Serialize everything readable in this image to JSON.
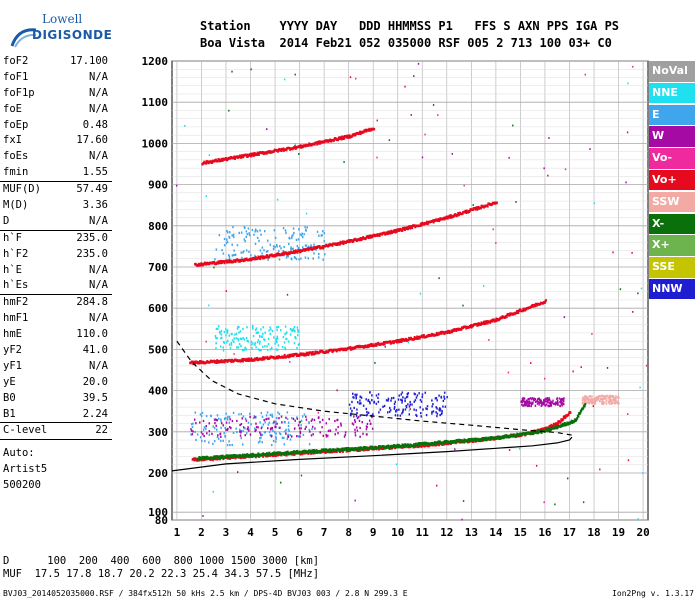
{
  "logo": {
    "line1": "Lowell",
    "line2": "DIGISONDE"
  },
  "header": {
    "line1": "Station    YYYY DAY   DDD HHMMSS P1   FFS S AXN PPS IGA PS",
    "line2": "Boa Vista  2014 Feb21 052 035000 RSF 005 2 713 100 03+ C0"
  },
  "params": [
    {
      "k": "foF2",
      "v": "17.100"
    },
    {
      "k": "foF1",
      "v": "N/A"
    },
    {
      "k": "foF1p",
      "v": "N/A"
    },
    {
      "k": "foE",
      "v": "N/A"
    },
    {
      "k": "foEp",
      "v": "0.48"
    },
    {
      "k": "fxI",
      "v": "17.60"
    },
    {
      "k": "foEs",
      "v": "N/A"
    },
    {
      "k": "fmin",
      "v": "1.55"
    },
    {
      "k": "MUF(D)",
      "v": "57.49"
    },
    {
      "k": "M(D)",
      "v": "3.36"
    },
    {
      "k": "D",
      "v": "N/A"
    },
    {
      "k": "h`F",
      "v": "235.0"
    },
    {
      "k": "h`F2",
      "v": "235.0"
    },
    {
      "k": "h`E",
      "v": "N/A"
    },
    {
      "k": "h`Es",
      "v": "N/A"
    },
    {
      "k": "hmF2",
      "v": "284.8"
    },
    {
      "k": "hmF1",
      "v": "N/A"
    },
    {
      "k": "hmE",
      "v": "110.0"
    },
    {
      "k": "yF2",
      "v": "41.0"
    },
    {
      "k": "yF1",
      "v": "N/A"
    },
    {
      "k": "yE",
      "v": "20.0"
    },
    {
      "k": "B0",
      "v": "39.5"
    },
    {
      "k": "B1",
      "v": "2.24"
    },
    {
      "k": "C-level",
      "v": "22"
    }
  ],
  "auto": {
    "line1": "Auto:",
    "line2": "Artist5",
    "line3": "500200"
  },
  "legend": [
    {
      "label": "NoVal",
      "color": "#a0a0a0"
    },
    {
      "label": "NNE",
      "color": "#1ee0ee"
    },
    {
      "label": "E",
      "color": "#3fa5ec"
    },
    {
      "label": "W",
      "color": "#a50aa5"
    },
    {
      "label": "Vo-",
      "color": "#ee2a9e"
    },
    {
      "label": "Vo+",
      "color": "#e60a1e"
    },
    {
      "label": "SSW",
      "color": "#f4aaa4"
    },
    {
      "label": "X-",
      "color": "#0a700a"
    },
    {
      "label": "X+",
      "color": "#6eb44e"
    },
    {
      "label": "SSE",
      "color": "#c4c400"
    },
    {
      "label": "NNW",
      "color": "#1e1ed0"
    }
  ],
  "muf_table": {
    "line1": "D      100  200  400  600  800 1000 1500 3000 [km]",
    "line2": "MUF  17.5 17.8 18.7 20.2 22.3 25.4 34.3 57.5 [MHz]"
  },
  "footer": "BVJ03_2014052035000.RSF / 384fx512h 50 kHs 2.5 km / DPS-4D BVJ03 003 / 2.8 N 299.3 E",
  "version": "Ion2Png v. 1.3.17",
  "chart_data": {
    "type": "scatter",
    "xlim": [
      0.8,
      20.2
    ],
    "ylim": [
      80,
      1200
    ],
    "x_ticks": [
      1,
      2,
      3,
      4,
      5,
      6,
      7,
      8,
      9,
      10,
      11,
      12,
      13,
      14,
      15,
      16,
      17,
      18,
      19,
      20
    ],
    "y_ticks": [
      80,
      100,
      200,
      300,
      400,
      500,
      600,
      700,
      800,
      900,
      1000,
      1100,
      1200
    ],
    "grid": true,
    "ionogram_traces": [
      {
        "trace": "O-trace 1st hop",
        "color": "#e60a1e",
        "points": [
          [
            1.6,
            235
          ],
          [
            3,
            240
          ],
          [
            5,
            247
          ],
          [
            7,
            255
          ],
          [
            9,
            262
          ],
          [
            11,
            270
          ],
          [
            13,
            281
          ],
          [
            15,
            295
          ],
          [
            16,
            310
          ],
          [
            16.5,
            325
          ],
          [
            17.0,
            350
          ]
        ]
      },
      {
        "trace": "X-trace 1st hop",
        "color": "#0a700a",
        "points": [
          [
            1.8,
            238
          ],
          [
            5,
            250
          ],
          [
            10,
            268
          ],
          [
            14,
            288
          ],
          [
            16,
            305
          ],
          [
            17.2,
            330
          ],
          [
            17.6,
            370
          ]
        ]
      },
      {
        "trace": "2nd hop",
        "color": "#e60a1e",
        "points": [
          [
            1.5,
            470
          ],
          [
            4,
            478
          ],
          [
            6,
            490
          ],
          [
            8,
            505
          ],
          [
            10,
            523
          ],
          [
            12,
            545
          ],
          [
            14,
            575
          ],
          [
            16,
            620
          ]
        ]
      },
      {
        "trace": "3rd hop",
        "color": "#e60a1e",
        "points": [
          [
            1.7,
            708
          ],
          [
            4,
            722
          ],
          [
            6,
            742
          ],
          [
            8,
            765
          ],
          [
            10,
            792
          ],
          [
            12,
            823
          ],
          [
            14,
            860
          ]
        ]
      },
      {
        "trace": "4th hop",
        "color": "#e60a1e",
        "points": [
          [
            2.0,
            955
          ],
          [
            4,
            975
          ],
          [
            6,
            995
          ],
          [
            8,
            1020
          ],
          [
            9,
            1040
          ]
        ]
      }
    ],
    "profile_lines": [
      {
        "style": "solid",
        "color": "#000000",
        "points": [
          [
            0.8,
            205
          ],
          [
            3,
            222
          ],
          [
            6,
            233
          ],
          [
            9,
            242
          ],
          [
            12,
            252
          ],
          [
            14,
            260
          ],
          [
            15.5,
            266
          ],
          [
            16.5,
            273
          ],
          [
            17.0,
            280
          ],
          [
            17.1,
            287
          ]
        ]
      },
      {
        "style": "dashed",
        "color": "#000000",
        "points": [
          [
            1.0,
            520
          ],
          [
            1.6,
            470
          ],
          [
            2.4,
            425
          ],
          [
            3.5,
            392
          ],
          [
            5,
            368
          ],
          [
            7,
            350
          ],
          [
            9,
            338
          ],
          [
            11,
            326
          ],
          [
            13,
            316
          ],
          [
            15,
            305
          ],
          [
            16.5,
            298
          ],
          [
            17.1,
            292
          ]
        ]
      }
    ],
    "scatter_clusters": [
      {
        "color": "#3fa5ec",
        "x": [
          1.5,
          6.5
        ],
        "y": [
          270,
          350
        ]
      },
      {
        "color": "#a50aa5",
        "x": [
          1.5,
          9
        ],
        "y": [
          290,
          340
        ]
      },
      {
        "color": "#1e1ed0",
        "x": [
          8,
          12
        ],
        "y": [
          340,
          400
        ]
      },
      {
        "color": "#a50aa5",
        "x": [
          15,
          16.8
        ],
        "y": [
          365,
          385
        ]
      },
      {
        "color": "#3fa5ec",
        "x": [
          2.5,
          7
        ],
        "y": [
          720,
          800
        ]
      },
      {
        "color": "#1ee0ee",
        "x": [
          2.5,
          6
        ],
        "y": [
          500,
          560
        ]
      },
      {
        "color": "#f4aaa4",
        "x": [
          17.5,
          19
        ],
        "y": [
          370,
          390
        ]
      }
    ]
  }
}
